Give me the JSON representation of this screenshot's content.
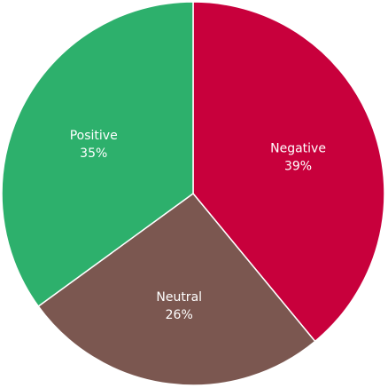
{
  "chart_data": {
    "type": "pie",
    "title": "",
    "start_angle_deg": 0,
    "direction": "clockwise",
    "slices": [
      {
        "name": "Negative",
        "value": 39,
        "percent_label": "39%",
        "color": "#C8003C"
      },
      {
        "name": "Neutral",
        "value": 26,
        "percent_label": "26%",
        "color": "#7B5750"
      },
      {
        "name": "Positive",
        "value": 35,
        "percent_label": "35%",
        "color": "#2DB06C"
      }
    ]
  }
}
